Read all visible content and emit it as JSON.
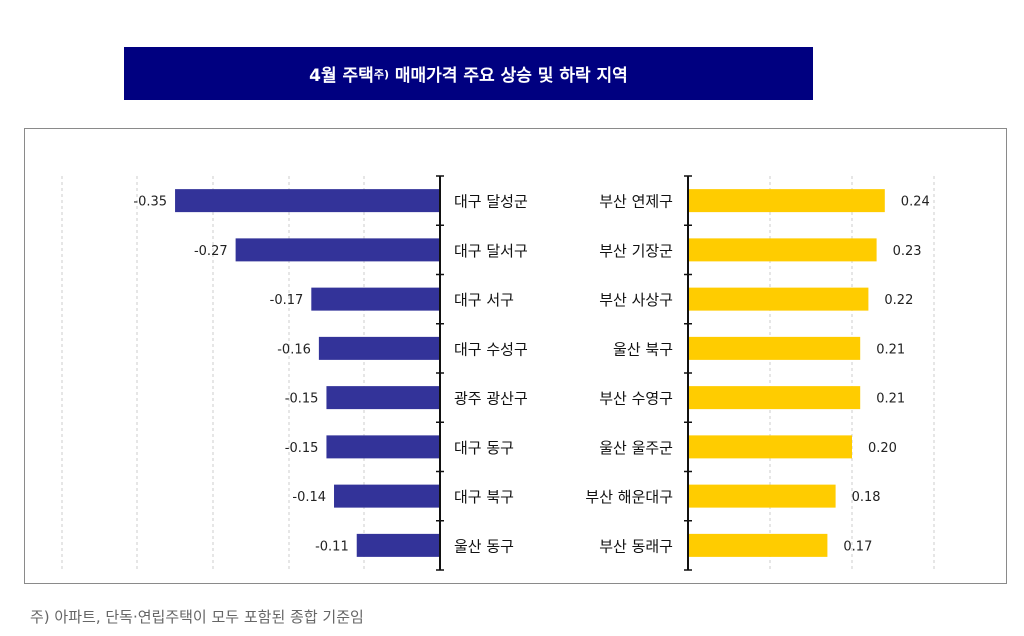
{
  "title": {
    "main": "4월 주택",
    "superscript": "주)",
    "rest": " 매매가격 주요 상승 및 하락 지역",
    "background": "#000080"
  },
  "footnote": "주) 아파트, 단독·연립주택이 모두 포함된 종합 기준임",
  "chart_data": [
    {
      "type": "bar",
      "orientation": "horizontal",
      "categories": [
        "대구 달성군",
        "대구 달서구",
        "대구 서구",
        "대구 수성구",
        "광주 광산구",
        "대구 동구",
        "대구 북구",
        "울산 동구"
      ],
      "values": [
        -0.35,
        -0.27,
        -0.17,
        -0.16,
        -0.15,
        -0.15,
        -0.14,
        -0.11
      ],
      "value_labels": [
        "-0.35",
        "-0.27",
        "-0.17",
        "-0.16",
        "-0.15",
        "-0.15",
        "-0.14",
        "-0.11"
      ],
      "xlim": [
        -0.5,
        0
      ],
      "grid": "vertical dashed",
      "color": "#333399"
    },
    {
      "type": "bar",
      "orientation": "horizontal",
      "categories": [
        "부산 연제구",
        "부산 기장군",
        "부산 사상구",
        "울산 북구",
        "부산 수영구",
        "울산 울주군",
        "부산 해운대구",
        "부산 동래구"
      ],
      "values": [
        0.24,
        0.23,
        0.22,
        0.21,
        0.21,
        0.2,
        0.18,
        0.17
      ],
      "value_labels": [
        "0.24",
        "0.23",
        "0.22",
        "0.21",
        "0.21",
        "0.20",
        "0.18",
        "0.17"
      ],
      "xlim": [
        0,
        0.3
      ],
      "grid": "vertical dashed",
      "color": "#FFCC00"
    }
  ]
}
